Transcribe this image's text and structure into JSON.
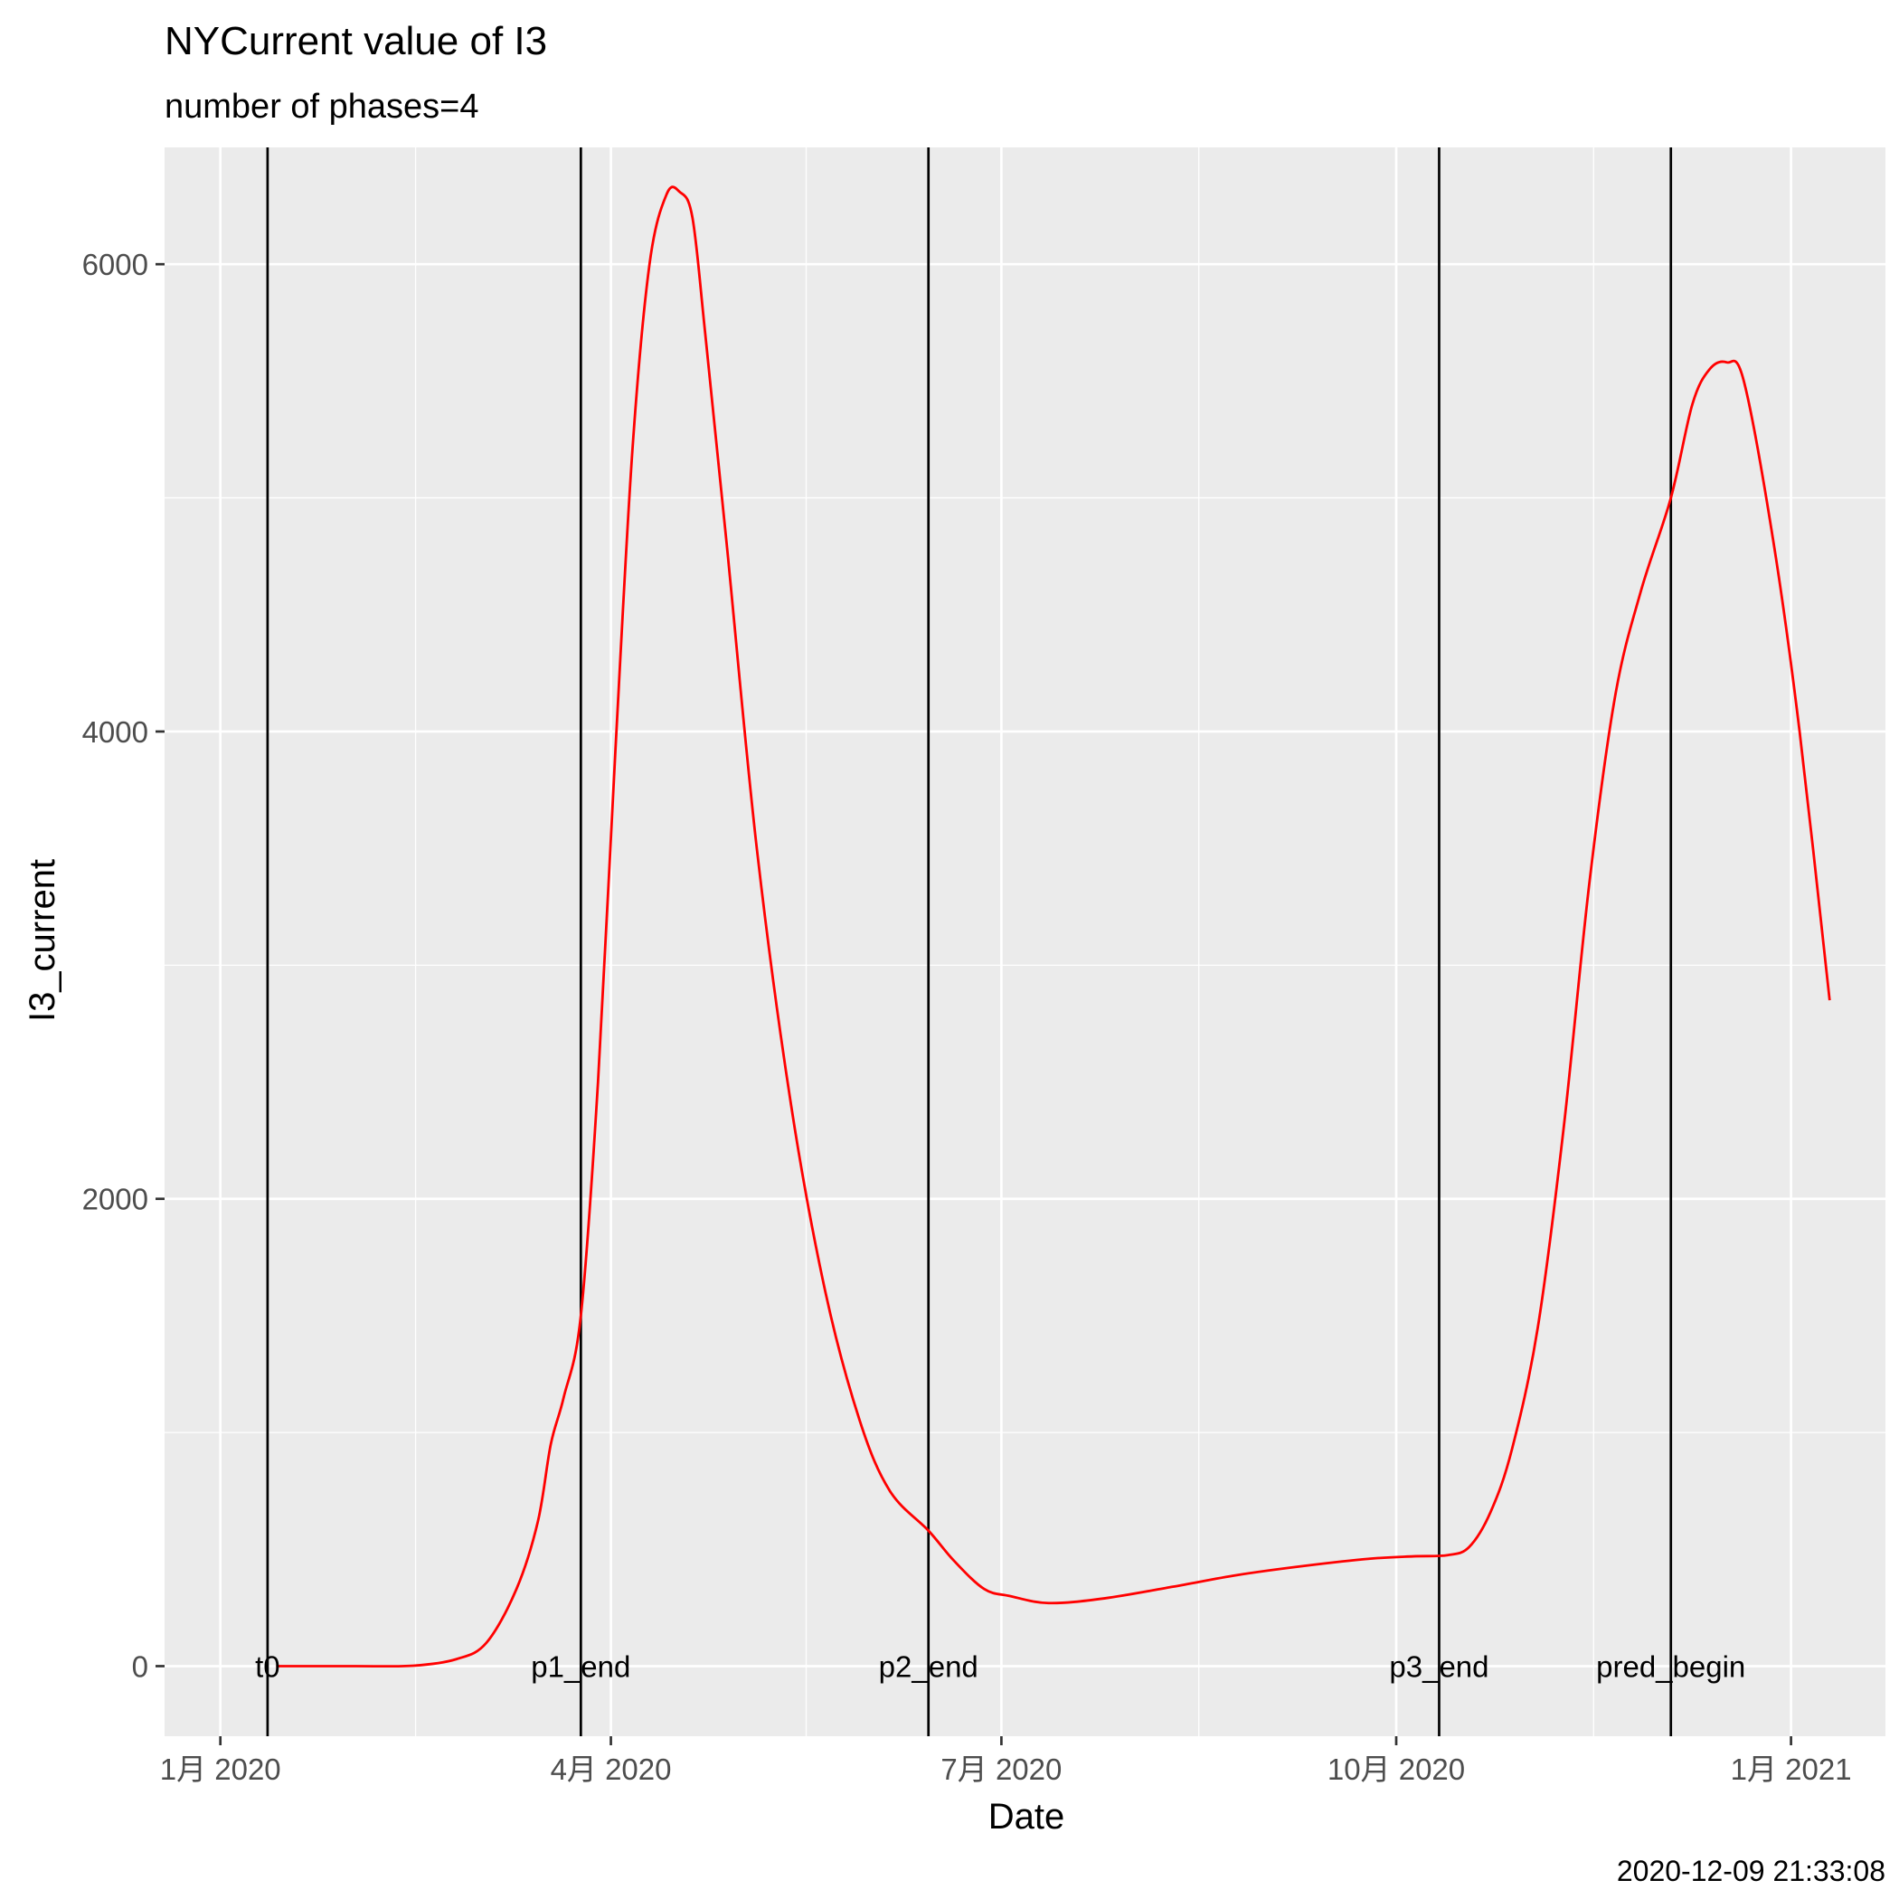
{
  "caption": "2020-12-09 21:33:08",
  "chart_data": {
    "type": "line",
    "title": "NYCurrent value of I3",
    "subtitle": "number of phases=4",
    "xlabel": "Date",
    "ylabel": "I3_current",
    "xlim": [
      "2019-12-19",
      "2021-01-23"
    ],
    "ylim": [
      -300,
      6500
    ],
    "grid": true,
    "x_ticks": [
      {
        "date": "2020-01-01",
        "label": "1月 2020"
      },
      {
        "date": "2020-04-01",
        "label": "4月 2020"
      },
      {
        "date": "2020-07-01",
        "label": "7月 2020"
      },
      {
        "date": "2020-10-01",
        "label": "10月 2020"
      },
      {
        "date": "2021-01-01",
        "label": "1月 2021"
      }
    ],
    "y_ticks": [
      0,
      2000,
      4000,
      6000
    ],
    "markers": [
      {
        "label": "t0",
        "date": "2020-01-12"
      },
      {
        "label": "p1_end",
        "date": "2020-03-25"
      },
      {
        "label": "p2_end",
        "date": "2020-06-14"
      },
      {
        "label": "p3_end",
        "date": "2020-10-11"
      },
      {
        "label": "pred_begin",
        "date": "2020-12-04"
      }
    ],
    "series": [
      {
        "color": "#ff0000",
        "x": [
          "2020-01-14",
          "2020-02-01",
          "2020-02-15",
          "2020-02-25",
          "2020-03-03",
          "2020-03-10",
          "2020-03-15",
          "2020-03-18",
          "2020-03-21",
          "2020-03-25",
          "2020-03-29",
          "2020-04-02",
          "2020-04-06",
          "2020-04-10",
          "2020-04-14",
          "2020-04-17",
          "2020-04-20",
          "2020-04-23",
          "2020-04-28",
          "2020-05-05",
          "2020-05-13",
          "2020-05-21",
          "2020-05-29",
          "2020-06-05",
          "2020-06-14",
          "2020-06-20",
          "2020-06-27",
          "2020-07-03",
          "2020-07-12",
          "2020-07-25",
          "2020-08-10",
          "2020-08-25",
          "2020-09-10",
          "2020-09-25",
          "2020-10-05",
          "2020-10-13",
          "2020-10-18",
          "2020-10-23",
          "2020-10-28",
          "2020-11-03",
          "2020-11-09",
          "2020-11-15",
          "2020-11-21",
          "2020-11-27",
          "2020-12-04",
          "2020-12-09",
          "2020-12-13",
          "2020-12-17",
          "2020-12-21",
          "2020-12-28",
          "2021-01-03",
          "2021-01-10"
        ],
        "y": [
          0,
          0,
          2,
          30,
          100,
          330,
          620,
          950,
          1150,
          1500,
          2500,
          3900,
          5200,
          6000,
          6300,
          6310,
          6200,
          5700,
          4800,
          3500,
          2400,
          1600,
          1050,
          750,
          580,
          450,
          330,
          300,
          270,
          290,
          340,
          390,
          430,
          460,
          470,
          475,
          510,
          660,
          930,
          1450,
          2300,
          3350,
          4150,
          4600,
          5000,
          5400,
          5550,
          5580,
          5500,
          4800,
          4000,
          2850
        ]
      }
    ]
  }
}
